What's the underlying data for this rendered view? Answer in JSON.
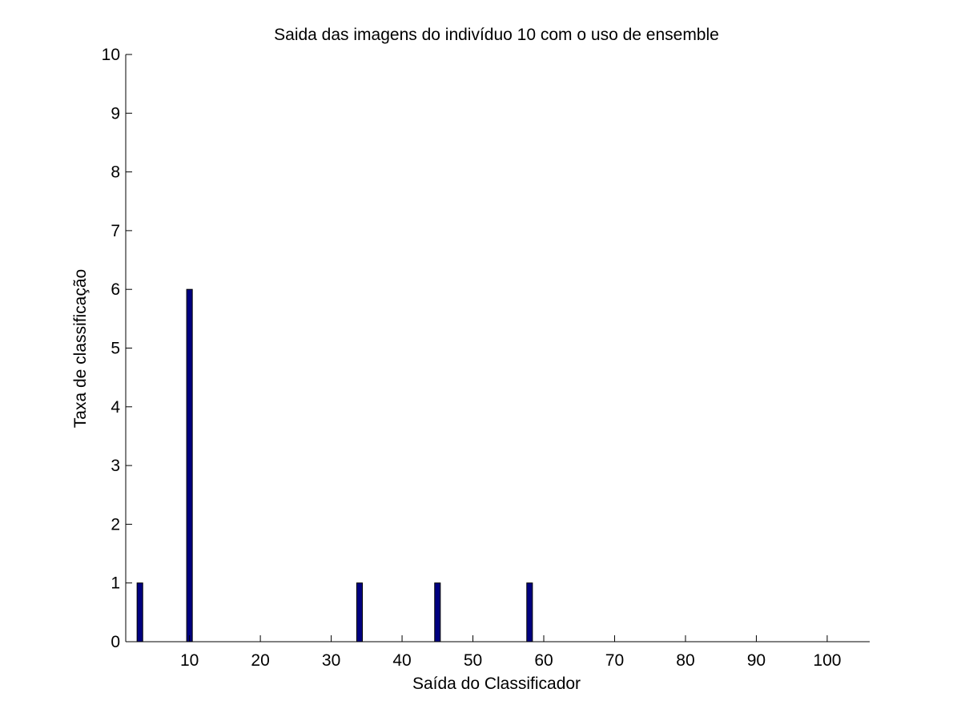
{
  "chart_data": {
    "type": "bar",
    "title": "Saida das imagens do indivíduo 10 com o uso de ensemble",
    "xlabel": "Saída do Classificador",
    "ylabel": "Taxa de classificação",
    "xlim": [
      1,
      106
    ],
    "ylim": [
      0,
      10
    ],
    "xticks": [
      10,
      20,
      30,
      40,
      50,
      60,
      70,
      80,
      90,
      100
    ],
    "yticks": [
      0,
      1,
      2,
      3,
      4,
      5,
      6,
      7,
      8,
      9,
      10
    ],
    "x": [
      3,
      10,
      34,
      45,
      58
    ],
    "values": [
      1,
      6,
      1,
      1,
      1
    ],
    "bar_color": "#000080",
    "grid": false,
    "box": false
  }
}
